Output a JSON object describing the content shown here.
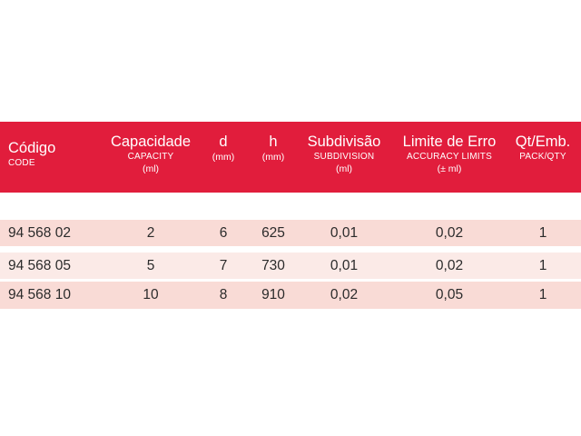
{
  "header": {
    "code": {
      "main": "Código",
      "sub": "CODE"
    },
    "capacity": {
      "main": "Capacidade",
      "sub": "CAPACITY",
      "unit": "(ml)"
    },
    "d": {
      "main": "d",
      "unit": "(mm)"
    },
    "h": {
      "main": "h",
      "unit": "(mm)"
    },
    "subdivision": {
      "main": "Subdivisão",
      "sub": "SUBDIVISION",
      "unit": "(ml)"
    },
    "limit": {
      "main": "Limite de Erro",
      "sub": "ACCURACY LIMITS",
      "unit": "(± ml)"
    },
    "qty": {
      "main": "Qt/Emb.",
      "sub": "PACK/QTY"
    }
  },
  "rows": [
    {
      "code": "94 568 02",
      "capacity": "2",
      "d": "6",
      "h": "625",
      "subdivision": "0,01",
      "limit": "0,02",
      "qty": "1"
    },
    {
      "code": "94 568 05",
      "capacity": "5",
      "d": "7",
      "h": "730",
      "subdivision": "0,01",
      "limit": "0,02",
      "qty": "1"
    },
    {
      "code": "94 568 10",
      "capacity": "10",
      "d": "8",
      "h": "910",
      "subdivision": "0,02",
      "limit": "0,05",
      "qty": "1"
    }
  ],
  "colors": {
    "header_bg": "#e11d3c",
    "row_dark": "#f9dbd6",
    "row_light": "#fbeae7"
  }
}
